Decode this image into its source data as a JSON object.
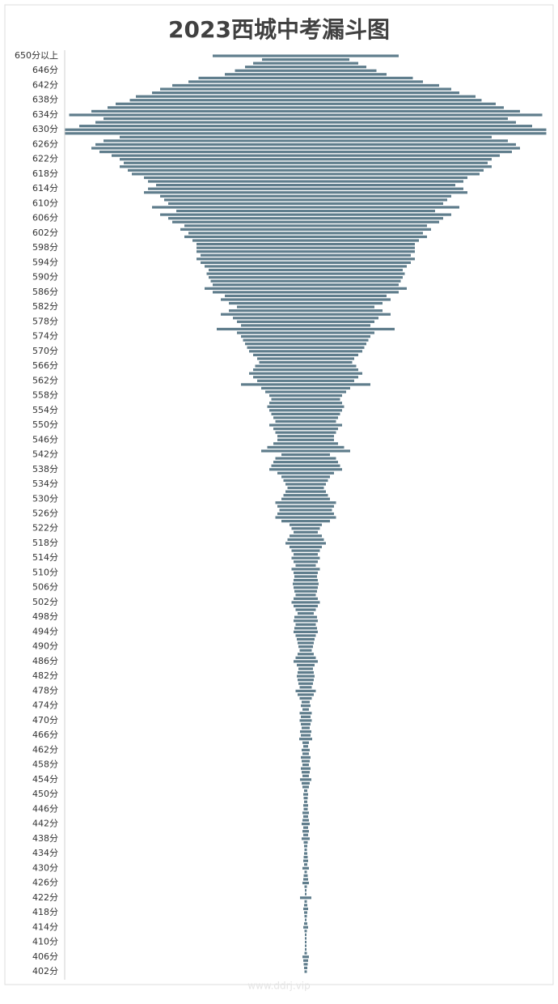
{
  "chart_data": {
    "type": "funnel",
    "title": "2023西城中考漏斗图",
    "watermark": "www.ddrj.vip",
    "color": "#5f7d8c",
    "categories": [
      "650分以上",
      null,
      null,
      null,
      "646分",
      null,
      null,
      null,
      "642分",
      null,
      null,
      null,
      "638分",
      null,
      null,
      null,
      "634分",
      null,
      null,
      null,
      "630分",
      null,
      null,
      null,
      "626分",
      null,
      null,
      null,
      "622分",
      null,
      null,
      null,
      "618分",
      null,
      null,
      null,
      "614分",
      null,
      null,
      null,
      "610分",
      null,
      null,
      null,
      "606分",
      null,
      null,
      null,
      "602分",
      null,
      null,
      null,
      "598分",
      null,
      null,
      null,
      "594分",
      null,
      null,
      null,
      "590分",
      null,
      null,
      null,
      "586分",
      null,
      null,
      null,
      "582分",
      null,
      null,
      null,
      "578分",
      null,
      null,
      null,
      "574分",
      null,
      null,
      null,
      "570分",
      null,
      null,
      null,
      "566分",
      null,
      null,
      null,
      "562分",
      null,
      null,
      null,
      "558分",
      null,
      null,
      null,
      "554分",
      null,
      null,
      null,
      "550分",
      null,
      null,
      null,
      "546分",
      null,
      null,
      null,
      "542分",
      null,
      null,
      null,
      "538分",
      null,
      null,
      null,
      "534分",
      null,
      null,
      null,
      "530分",
      null,
      null,
      null,
      "526分",
      null,
      null,
      null,
      "522分",
      null,
      null,
      null,
      "518分",
      null,
      null,
      null,
      "514分",
      null,
      null,
      null,
      "510分",
      null,
      null,
      null,
      "506分",
      null,
      null,
      null,
      "502分",
      null,
      null,
      null,
      "498分",
      null,
      null,
      null,
      "494分",
      null,
      null,
      null,
      "490分",
      null,
      null,
      null,
      "486分",
      null,
      null,
      null,
      "482分",
      null,
      null,
      null,
      "478分",
      null,
      null,
      null,
      "474分",
      null,
      null,
      null,
      "470分",
      null,
      null,
      null,
      "466分",
      null,
      null,
      null,
      "462分",
      null,
      null,
      null,
      "458分",
      null,
      null,
      null,
      "454分",
      null,
      null,
      null,
      "450分",
      null,
      null,
      null,
      "446分",
      null,
      null,
      null,
      "442分",
      null,
      null,
      null,
      "438分",
      null,
      null,
      null,
      "434分",
      null,
      null,
      null,
      "430分",
      null,
      null,
      null,
      "426分",
      null,
      null,
      null,
      "422分",
      null,
      null,
      null,
      "418分",
      null,
      null,
      null,
      "414分",
      null,
      null,
      null,
      "410分",
      null,
      null,
      null,
      "406分",
      null,
      null,
      null,
      "402分"
    ],
    "values": [
      230,
      108,
      130,
      150,
      175,
      200,
      265,
      290,
      330,
      360,
      380,
      420,
      435,
      470,
      490,
      530,
      585,
      500,
      520,
      560,
      595,
      595,
      460,
      500,
      520,
      530,
      510,
      480,
      460,
      450,
      460,
      440,
      430,
      400,
      390,
      370,
      390,
      400,
      360,
      350,
      340,
      380,
      320,
      360,
      340,
      330,
      300,
      310,
      290,
      300,
      280,
      270,
      270,
      270,
      260,
      270,
      260,
      250,
      240,
      245,
      240,
      235,
      230,
      250,
      230,
      200,
      210,
      190,
      170,
      190,
      210,
      180,
      170,
      160,
      220,
      170,
      160,
      155,
      150,
      145,
      140,
      130,
      120,
      115,
      125,
      130,
      140,
      130,
      120,
      160,
      110,
      100,
      90,
      85,
      90,
      95,
      90,
      85,
      80,
      75,
      90,
      80,
      75,
      70,
      70,
      80,
      95,
      110,
      60,
      75,
      80,
      85,
      90,
      70,
      60,
      55,
      50,
      45,
      50,
      55,
      60,
      75,
      70,
      65,
      70,
      75,
      60,
      40,
      35,
      30,
      40,
      45,
      50,
      40,
      35,
      30,
      35,
      30,
      25,
      35,
      30,
      28,
      30,
      32,
      30,
      28,
      25,
      30,
      35,
      30,
      25,
      20,
      28,
      30,
      25,
      28,
      30,
      25,
      22,
      20,
      18,
      15,
      20,
      25,
      30,
      22,
      18,
      20,
      22,
      20,
      18,
      15,
      25,
      20,
      15,
      10,
      12,
      8,
      15,
      12,
      15,
      12,
      10,
      14,
      12,
      16,
      8,
      6,
      10,
      8,
      12,
      10,
      8,
      12,
      10,
      8,
      14,
      10,
      8,
      4,
      6,
      5,
      4,
      6,
      5,
      8,
      6,
      8,
      10,
      6,
      8,
      6,
      10,
      5,
      4,
      3,
      4,
      5,
      6,
      4,
      8,
      3,
      5,
      6,
      8,
      3,
      2,
      2,
      14,
      3,
      4,
      6,
      4,
      3,
      2,
      4,
      6,
      3,
      2,
      2,
      2,
      2,
      2,
      3,
      8,
      6,
      5,
      4,
      3
    ]
  }
}
